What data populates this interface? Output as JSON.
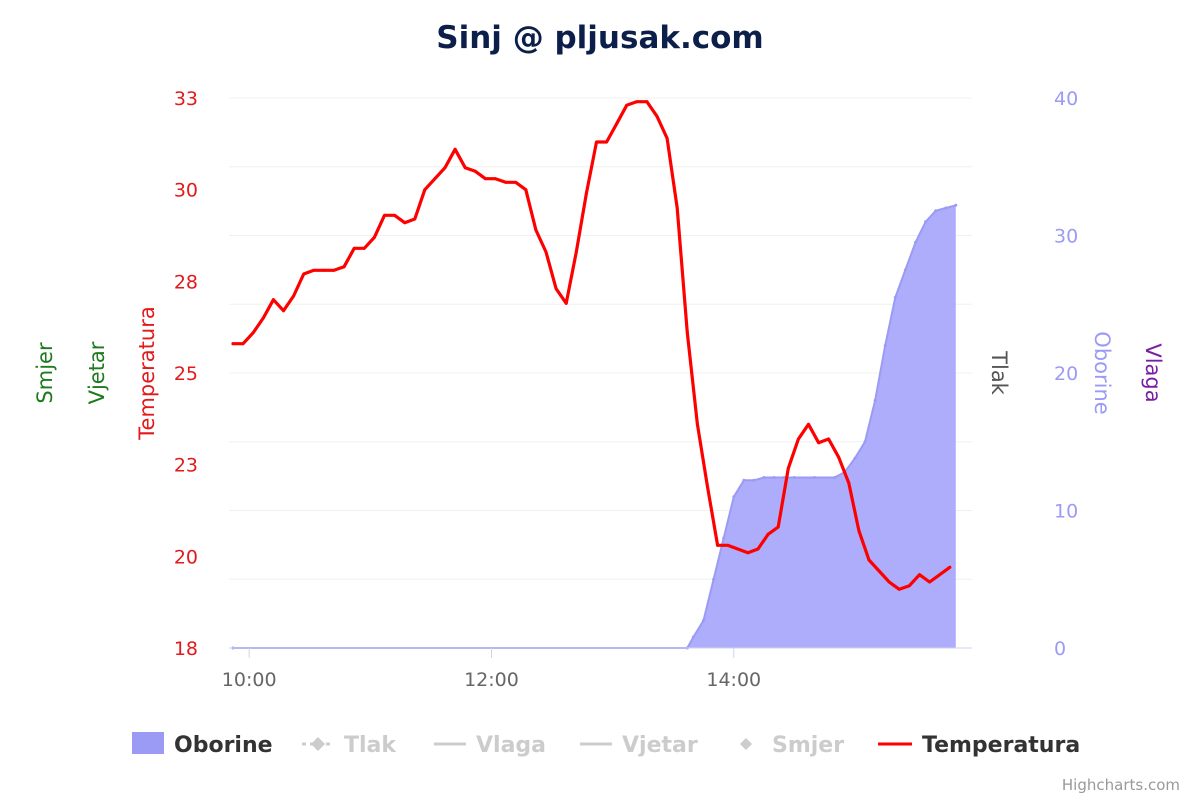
{
  "chart_data": {
    "type": "line",
    "title": "Sinj @ pljusak.com",
    "x_axis": {
      "ticks": [
        "10:00",
        "12:00",
        "14:00"
      ],
      "range": [
        "09:52",
        "15:50"
      ]
    },
    "y_axes": [
      {
        "id": "temperature",
        "title": "Temperatura",
        "color": "#e31a1c",
        "side": "left",
        "ticks": [
          "18",
          "20",
          "23",
          "25",
          "28",
          "30",
          "33"
        ],
        "min": 18,
        "max": 33
      },
      {
        "id": "precipitation",
        "title": "Oborine",
        "color": "#9b9bf5",
        "side": "right",
        "ticks": [
          "0",
          "10",
          "20",
          "30",
          "40"
        ],
        "min": 0,
        "max": 40
      },
      {
        "id": "pressure",
        "title": "Tlak",
        "color": "#555555",
        "side": "right"
      },
      {
        "id": "humidity",
        "title": "Vlaga",
        "color": "#7a1fa2",
        "side": "right"
      },
      {
        "id": "wind",
        "title": "Vjetar",
        "color": "#1e7a1e",
        "side": "left"
      },
      {
        "id": "direction",
        "title": "Smjer",
        "color": "#1e7a1e",
        "side": "left"
      }
    ],
    "legend": {
      "position": "bottom",
      "items": [
        {
          "name": "Oborine",
          "visible": true,
          "symbol": "area",
          "color": "#9b9bf5"
        },
        {
          "name": "Tlak",
          "visible": false,
          "symbol": "line-diamond",
          "color": "#cccccc"
        },
        {
          "name": "Vlaga",
          "visible": false,
          "symbol": "line",
          "color": "#cccccc"
        },
        {
          "name": "Vjetar",
          "visible": false,
          "symbol": "line",
          "color": "#cccccc"
        },
        {
          "name": "Smjer",
          "visible": false,
          "symbol": "diamond",
          "color": "#cccccc"
        },
        {
          "name": "Temperatura",
          "visible": true,
          "symbol": "line",
          "color": "#ff0000"
        }
      ]
    },
    "grid": true,
    "series": [
      {
        "name": "Temperatura",
        "axis": "temperature",
        "type": "line",
        "color": "#ff0000",
        "x": [
          "09:52",
          "09:57",
          "10:02",
          "10:07",
          "10:12",
          "10:17",
          "10:22",
          "10:27",
          "10:32",
          "10:37",
          "10:42",
          "10:47",
          "10:52",
          "10:57",
          "11:02",
          "11:07",
          "11:12",
          "11:17",
          "11:22",
          "11:27",
          "11:32",
          "11:37",
          "11:42",
          "11:47",
          "11:52",
          "11:57",
          "12:02",
          "12:07",
          "12:12",
          "12:17",
          "12:22",
          "12:27",
          "12:32",
          "12:37",
          "12:42",
          "12:47",
          "12:52",
          "12:57",
          "13:02",
          "13:07",
          "13:12",
          "13:17",
          "13:22",
          "13:27",
          "13:32",
          "13:37",
          "13:42",
          "13:47",
          "13:52",
          "13:57",
          "14:02",
          "14:07",
          "14:12",
          "14:17",
          "14:22",
          "14:27",
          "14:32",
          "14:37",
          "14:42",
          "14:47",
          "14:52",
          "14:57",
          "15:02",
          "15:07",
          "15:12",
          "15:17",
          "15:22",
          "15:27",
          "15:32",
          "15:37",
          "15:42",
          "15:47"
        ],
        "values": [
          26.3,
          26.3,
          26.6,
          27.0,
          27.5,
          27.2,
          27.6,
          28.2,
          28.3,
          28.3,
          28.3,
          28.4,
          28.9,
          28.9,
          29.2,
          29.8,
          29.8,
          29.6,
          29.7,
          30.5,
          30.8,
          31.1,
          31.6,
          31.1,
          31.0,
          30.8,
          30.8,
          30.7,
          30.7,
          30.5,
          29.4,
          28.8,
          27.8,
          27.4,
          28.8,
          30.4,
          31.8,
          31.8,
          32.3,
          32.8,
          32.9,
          32.9,
          32.5,
          31.9,
          30.0,
          26.6,
          24.1,
          22.4,
          20.8,
          20.8,
          20.7,
          20.6,
          20.7,
          21.1,
          21.3,
          22.9,
          23.7,
          24.1,
          23.6,
          23.7,
          23.2,
          22.5,
          21.2,
          20.4,
          20.1,
          19.8,
          19.6,
          19.7,
          20.0,
          19.8,
          20.0,
          20.2
        ]
      },
      {
        "name": "Oborine",
        "axis": "precipitation",
        "type": "area",
        "color": "#9b9bf5",
        "x": [
          "09:52",
          "13:37",
          "13:40",
          "13:45",
          "13:50",
          "13:55",
          "14:00",
          "14:05",
          "14:10",
          "14:15",
          "14:20",
          "14:25",
          "14:30",
          "14:40",
          "14:50",
          "14:55",
          "15:00",
          "15:05",
          "15:10",
          "15:15",
          "15:20",
          "15:25",
          "15:30",
          "15:35",
          "15:40",
          "15:45",
          "15:50"
        ],
        "values": [
          0.0,
          0.0,
          0.8,
          2.0,
          5.0,
          8.0,
          11.0,
          12.2,
          12.2,
          12.4,
          12.4,
          12.4,
          12.4,
          12.4,
          12.4,
          12.8,
          13.8,
          15.0,
          18.0,
          22.0,
          25.5,
          27.5,
          29.5,
          31.0,
          31.8,
          32.0,
          32.2
        ]
      }
    ]
  },
  "credits": "Highcharts.com"
}
